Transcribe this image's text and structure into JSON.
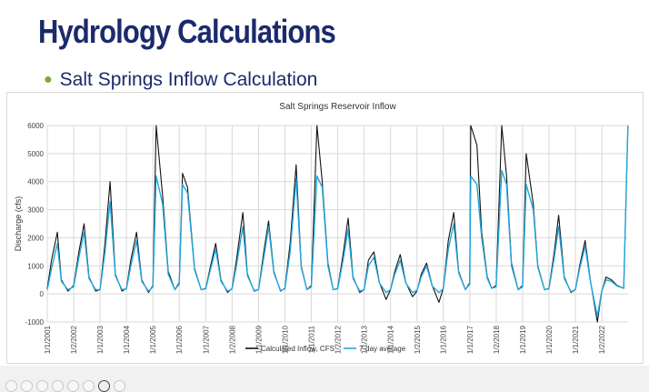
{
  "slide": {
    "title": "Hydrology Calculations",
    "bullet": "Salt Springs Inflow Calculation"
  },
  "colors": {
    "title": "#1b2a6b",
    "bullet_dot": "#7aa83a",
    "inflow": "#111111",
    "avg": "#21a7dd",
    "grid": "#d9d9d9"
  },
  "viewer_controls": [
    "prev-icon",
    "next-icon",
    "pen-icon",
    "pages-icon",
    "zoom-icon",
    "captions-icon",
    "camera-icon",
    "more-icon"
  ],
  "chart_data": {
    "type": "line",
    "title": "Salt Springs Reservoir Inflow",
    "xlabel": "",
    "ylabel": "Discharge (cfs)",
    "ylim": [
      -1000,
      6000
    ],
    "yticks": [
      -1000,
      0,
      1000,
      2000,
      3000,
      4000,
      5000,
      6000
    ],
    "xlim": [
      "2001-01-01",
      "2022-12-31"
    ],
    "xticks": [
      "1/1/2001",
      "1/2/2002",
      "1/1/2003",
      "1/1/2004",
      "1/1/2005",
      "1/1/2006",
      "1/1/2007",
      "1/2/2008",
      "1/1/2009",
      "1/1/2010",
      "1/1/2011",
      "1/2/2012",
      "1/1/2013",
      "1/1/2014",
      "1/2/2015",
      "1/1/2016",
      "1/1/2017",
      "1/2/2018",
      "1/1/2019",
      "1/1/2020",
      "1/1/2021",
      "1/2/2022"
    ],
    "grid": true,
    "legend": "bottom-center",
    "series": [
      {
        "name": "Calculated Inflow, CFS",
        "color": "#111111",
        "x": [
          "2001-01-01",
          "2001-03-01",
          "2001-05-20",
          "2001-07-15",
          "2001-10-15",
          "2002-01-01",
          "2002-03-15",
          "2002-05-25",
          "2002-08-01",
          "2002-11-01",
          "2003-01-01",
          "2003-03-10",
          "2003-05-20",
          "2003-08-01",
          "2003-11-01",
          "2004-01-01",
          "2004-03-01",
          "2004-05-20",
          "2004-08-01",
          "2004-11-01",
          "2005-01-01",
          "2005-02-15",
          "2005-05-15",
          "2005-08-01",
          "2005-11-01",
          "2006-01-01",
          "2006-02-15",
          "2006-04-25",
          "2006-08-01",
          "2006-11-01",
          "2007-01-01",
          "2007-03-01",
          "2007-05-20",
          "2007-08-01",
          "2007-11-01",
          "2008-01-01",
          "2008-03-01",
          "2008-05-30",
          "2008-08-01",
          "2008-11-01",
          "2009-01-01",
          "2009-03-15",
          "2009-05-20",
          "2009-08-01",
          "2009-11-01",
          "2010-01-01",
          "2010-03-15",
          "2010-06-05",
          "2010-08-15",
          "2010-11-01",
          "2011-01-01",
          "2011-03-20",
          "2011-06-01",
          "2011-08-20",
          "2011-11-01",
          "2012-01-01",
          "2012-03-15",
          "2012-05-25",
          "2012-08-01",
          "2012-11-01",
          "2013-01-01",
          "2013-03-01",
          "2013-05-15",
          "2013-08-01",
          "2013-11-01",
          "2014-01-01",
          "2014-03-01",
          "2014-05-15",
          "2014-08-01",
          "2014-11-01",
          "2015-01-01",
          "2015-03-01",
          "2015-05-15",
          "2015-08-01",
          "2015-11-01",
          "2016-01-01",
          "2016-03-10",
          "2016-05-25",
          "2016-08-01",
          "2016-11-01",
          "2017-01-01",
          "2017-01-15",
          "2017-04-10",
          "2017-06-15",
          "2017-09-01",
          "2017-11-01",
          "2018-01-01",
          "2018-03-20",
          "2018-05-25",
          "2018-08-01",
          "2018-11-01",
          "2019-01-01",
          "2019-02-20",
          "2019-05-30",
          "2019-08-01",
          "2019-11-01",
          "2020-01-01",
          "2020-03-15",
          "2020-05-15",
          "2020-08-01",
          "2020-11-01",
          "2021-01-01",
          "2021-03-01",
          "2021-05-15",
          "2021-08-01",
          "2021-11-01",
          "2022-01-01",
          "2022-03-01",
          "2022-05-15",
          "2022-08-01",
          "2022-11-01",
          "2022-12-28"
        ],
        "values": [
          200,
          1200,
          2200,
          500,
          100,
          300,
          1500,
          2500,
          600,
          100,
          150,
          1800,
          4000,
          700,
          100,
          200,
          1200,
          2200,
          500,
          50,
          300,
          6000,
          3500,
          800,
          150,
          400,
          4300,
          3800,
          900,
          150,
          200,
          900,
          1800,
          500,
          50,
          200,
          1200,
          2900,
          700,
          100,
          150,
          1500,
          2600,
          800,
          100,
          200,
          1800,
          4600,
          1000,
          150,
          300,
          6000,
          4000,
          1100,
          150,
          200,
          1400,
          2700,
          600,
          50,
          150,
          1200,
          1500,
          400,
          -200,
          150,
          800,
          1400,
          400,
          -100,
          100,
          700,
          1100,
          300,
          -300,
          200,
          1900,
          2900,
          800,
          150,
          400,
          6000,
          5300,
          2200,
          600,
          200,
          300,
          6000,
          4200,
          1100,
          150,
          300,
          5000,
          3200,
          1000,
          150,
          200,
          1500,
          2800,
          600,
          50,
          150,
          1000,
          1900,
          400,
          -1000,
          100,
          600,
          500,
          300,
          200,
          6000
        ]
      },
      {
        "name": "7-day average",
        "color": "#21a7dd",
        "x": [
          "2001-01-01",
          "2001-03-01",
          "2001-05-20",
          "2001-07-15",
          "2001-10-15",
          "2002-01-01",
          "2002-03-15",
          "2002-05-25",
          "2002-08-01",
          "2002-11-01",
          "2003-01-01",
          "2003-03-10",
          "2003-05-20",
          "2003-08-01",
          "2003-11-01",
          "2004-01-01",
          "2004-03-01",
          "2004-05-20",
          "2004-08-01",
          "2004-11-01",
          "2005-01-01",
          "2005-02-15",
          "2005-05-15",
          "2005-08-01",
          "2005-11-01",
          "2006-01-01",
          "2006-02-15",
          "2006-04-25",
          "2006-08-01",
          "2006-11-01",
          "2007-01-01",
          "2007-03-01",
          "2007-05-20",
          "2007-08-01",
          "2007-11-01",
          "2008-01-01",
          "2008-03-01",
          "2008-05-30",
          "2008-08-01",
          "2008-11-01",
          "2009-01-01",
          "2009-03-15",
          "2009-05-20",
          "2009-08-01",
          "2009-11-01",
          "2010-01-01",
          "2010-03-15",
          "2010-06-05",
          "2010-08-15",
          "2010-11-01",
          "2011-01-01",
          "2011-03-20",
          "2011-06-01",
          "2011-08-20",
          "2011-11-01",
          "2012-01-01",
          "2012-03-15",
          "2012-05-25",
          "2012-08-01",
          "2012-11-01",
          "2013-01-01",
          "2013-03-01",
          "2013-05-15",
          "2013-08-01",
          "2013-11-01",
          "2014-01-01",
          "2014-03-01",
          "2014-05-15",
          "2014-08-01",
          "2014-11-01",
          "2015-01-01",
          "2015-03-01",
          "2015-05-15",
          "2015-08-01",
          "2015-11-01",
          "2016-01-01",
          "2016-03-10",
          "2016-05-25",
          "2016-08-01",
          "2016-11-01",
          "2017-01-01",
          "2017-01-15",
          "2017-04-10",
          "2017-06-15",
          "2017-09-01",
          "2017-11-01",
          "2018-01-01",
          "2018-03-20",
          "2018-05-25",
          "2018-08-01",
          "2018-11-01",
          "2019-01-01",
          "2019-02-20",
          "2019-05-30",
          "2019-08-01",
          "2019-11-01",
          "2020-01-01",
          "2020-03-15",
          "2020-05-15",
          "2020-08-01",
          "2020-11-01",
          "2021-01-01",
          "2021-03-01",
          "2021-05-15",
          "2021-08-01",
          "2021-11-01",
          "2022-01-01",
          "2022-03-01",
          "2022-05-15",
          "2022-08-01",
          "2022-11-01",
          "2022-12-28"
        ],
        "values": [
          150,
          900,
          1800,
          450,
          150,
          250,
          1300,
          2200,
          550,
          150,
          150,
          1500,
          3300,
          650,
          150,
          180,
          1000,
          1900,
          450,
          100,
          250,
          4200,
          3200,
          700,
          150,
          350,
          3900,
          3600,
          850,
          150,
          180,
          800,
          1600,
          450,
          100,
          180,
          1000,
          2400,
          650,
          120,
          150,
          1300,
          2400,
          750,
          120,
          180,
          1500,
          4100,
          950,
          150,
          250,
          4200,
          3800,
          1000,
          150,
          180,
          1200,
          2300,
          550,
          100,
          150,
          1000,
          1300,
          380,
          50,
          150,
          700,
          1200,
          380,
          50,
          120,
          600,
          1000,
          280,
          50,
          180,
          1600,
          2500,
          750,
          150,
          350,
          4200,
          3900,
          2000,
          550,
          200,
          250,
          4400,
          3900,
          1000,
          150,
          250,
          3900,
          3000,
          950,
          150,
          180,
          1300,
          2400,
          550,
          80,
          150,
          900,
          1700,
          380,
          -800,
          100,
          500,
          450,
          280,
          200,
          6000
        ]
      }
    ]
  }
}
